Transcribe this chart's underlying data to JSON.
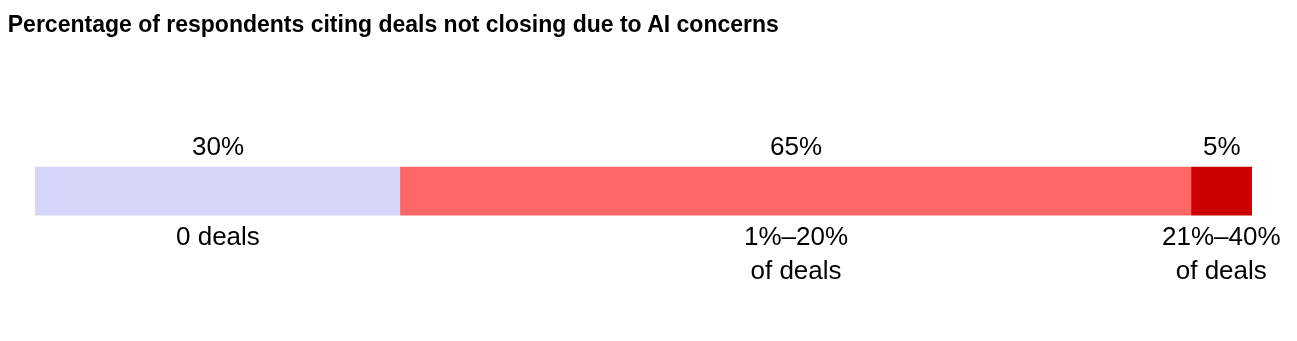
{
  "chart_data": {
    "type": "bar",
    "title": "Percentage of respondents citing deals not closing due to AI concerns",
    "orientation": "horizontal",
    "stacked": true,
    "categories": [
      null
    ],
    "series": [
      {
        "name": "0 deals",
        "color": "#d6d6fb",
        "values": [
          30
        ],
        "value_labels": [
          "30%"
        ]
      },
      {
        "name": "1%–20% of deals",
        "color": "#ff6666",
        "values": [
          65
        ],
        "value_labels": [
          "65%"
        ]
      },
      {
        "name": "21%–40% of deals",
        "color": "#cc0000",
        "values": [
          5
        ],
        "value_labels": [
          "5%"
        ]
      }
    ]
  }
}
